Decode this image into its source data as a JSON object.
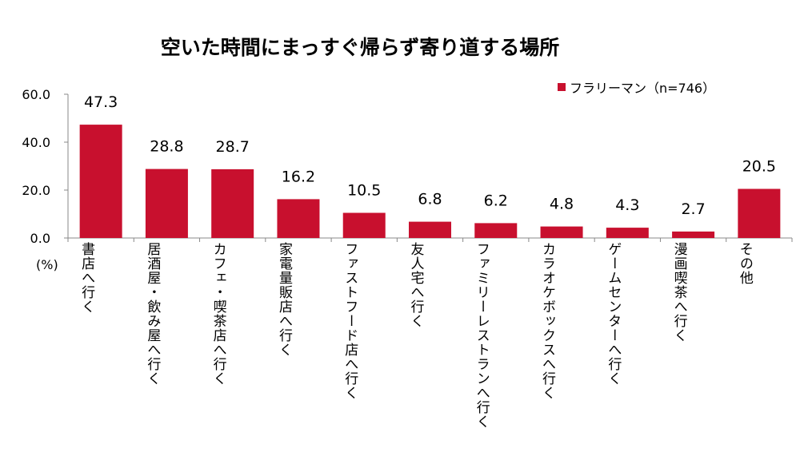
{
  "chart_data": {
    "type": "bar",
    "title": "空いた時間にまっすぐ帰らず寄り道する場所",
    "unit_label": "(%)",
    "categories": [
      "書店へ行く",
      "居酒屋・飲み屋へ行く",
      "カフェ・喫茶店へ行く",
      "家電量販店へ行く",
      "ファストフード店へ行く",
      "友人宅へ行く",
      "ファミリーレストランへ行く",
      "カラオケボックスへ行く",
      "ゲームセンターへ行く",
      "漫画喫茶へ行く",
      "その他"
    ],
    "series": [
      {
        "name": "フラリーマン（n=746）",
        "values": [
          47.3,
          28.8,
          28.7,
          16.2,
          10.5,
          6.8,
          6.2,
          4.8,
          4.3,
          2.7,
          20.5
        ],
        "color": "#c8102e"
      }
    ],
    "ylim": [
      0,
      60
    ],
    "yticks": [
      "0.0",
      "20.0",
      "40.0",
      "60.0"
    ],
    "grid": false,
    "legend": "top-right"
  }
}
